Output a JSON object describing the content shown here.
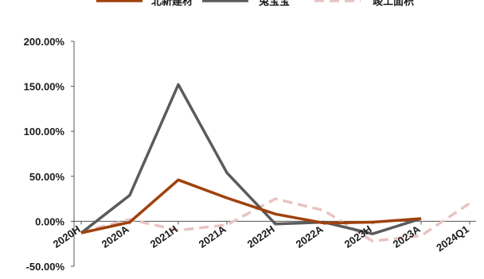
{
  "chart_data": {
    "type": "line",
    "categories": [
      "2020H",
      "2020A",
      "2021H",
      "2021A",
      "2022H",
      "2022A",
      "2023H",
      "2023A",
      "2024Q1"
    ],
    "ylim": [
      -50,
      200
    ],
    "yticks": [
      -50,
      0,
      50,
      100,
      150,
      200
    ],
    "ytick_labels": [
      "-50.00%",
      "0.00%",
      "50.00%",
      "100.00%",
      "150.00%",
      "200.00%"
    ],
    "grid": false,
    "legend_position": "top",
    "series": [
      {
        "name": "北新建材",
        "color": "#a0410d",
        "dash": "solid",
        "values": [
          -13,
          -1,
          46,
          26,
          8,
          -2,
          -1,
          3,
          null
        ]
      },
      {
        "name": "兔宝宝",
        "color": "#5b5b5b",
        "dash": "solid",
        "values": [
          -13,
          29,
          152,
          54,
          -3,
          -1,
          -14,
          3,
          null
        ]
      },
      {
        "name": "竣工面积",
        "color": "#e8c4c2",
        "dash": "dashed",
        "values": [
          -12,
          2,
          -10,
          -4,
          25,
          12,
          -22,
          -16,
          20
        ]
      }
    ]
  }
}
